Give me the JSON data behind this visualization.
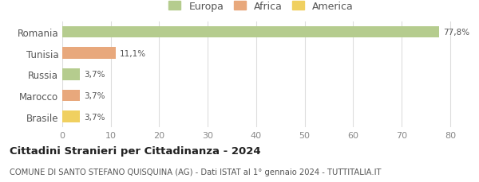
{
  "categories": [
    "Romania",
    "Tunisia",
    "Russia",
    "Marocco",
    "Brasile"
  ],
  "values": [
    77.8,
    11.1,
    3.7,
    3.7,
    3.7
  ],
  "labels": [
    "77,8%",
    "11,1%",
    "3,7%",
    "3,7%",
    "3,7%"
  ],
  "bar_colors": [
    "#b5cc8e",
    "#e8a87c",
    "#b5cc8e",
    "#e8a87c",
    "#f0d060"
  ],
  "legend": [
    {
      "label": "Europa",
      "color": "#b5cc8e"
    },
    {
      "label": "Africa",
      "color": "#e8a87c"
    },
    {
      "label": "America",
      "color": "#f0d060"
    }
  ],
  "xlim": [
    0,
    82
  ],
  "xticks": [
    0,
    10,
    20,
    30,
    40,
    50,
    60,
    70,
    80
  ],
  "title": "Cittadini Stranieri per Cittadinanza - 2024",
  "subtitle": "COMUNE DI SANTO STEFANO QUISQUINA (AG) - Dati ISTAT al 1° gennaio 2024 - TUTTITALIA.IT",
  "background_color": "#ffffff",
  "grid_color": "#dddddd"
}
